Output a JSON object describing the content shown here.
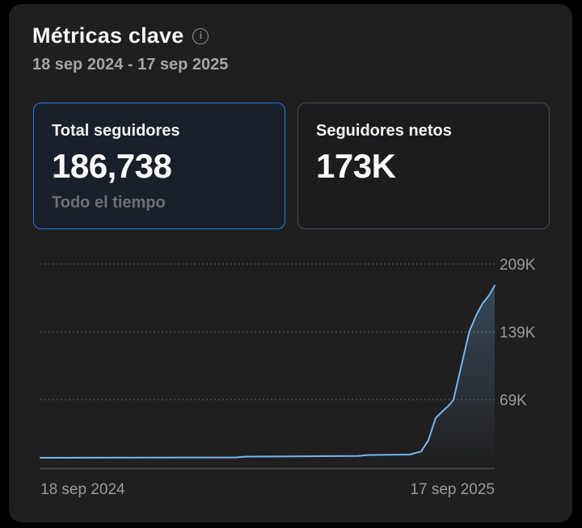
{
  "app": {
    "background": "#000000",
    "panel_background": "#1f1f20"
  },
  "header": {
    "title": "Métricas clave",
    "info_icon_glyph": "i",
    "date_range": "18 sep 2024 - 17 sep 2025"
  },
  "cards": [
    {
      "label": "Total seguidores",
      "value": "186,738",
      "sublabel": "Todo el tiempo",
      "selected": true
    },
    {
      "label": "Seguidores netos",
      "value": "173K",
      "selected": false
    }
  ],
  "colors": {
    "accent_blue": "#2b7bd4",
    "line_blue": "#7cb5e8",
    "text_primary": "#f5f5f5",
    "text_secondary": "#a5a5a5",
    "text_muted": "#6f6f73",
    "axis_text": "#9b9b9b",
    "card_border": "#4b4b4e"
  },
  "chart_data": {
    "type": "area",
    "series_name": "Total seguidores",
    "title": "",
    "x_axis_labels": [
      "18 sep 2024",
      "17 sep 2025"
    ],
    "y_ticks": [
      "69K",
      "139K",
      "209K"
    ],
    "y_tick_values": [
      69000,
      139000,
      209000
    ],
    "ylim": [
      0,
      209000
    ],
    "xlim_dates": [
      "18 sep 2024",
      "17 sep 2025"
    ],
    "grid": "horizontal-dashed",
    "legend": "none",
    "points": [
      {
        "t": 0.0,
        "approx_date": "18 sep 2024",
        "value": 9000
      },
      {
        "t": 0.43,
        "approx_date": "22 feb 2025",
        "value": 9300
      },
      {
        "t": 0.45,
        "approx_date": "1 mar 2025",
        "value": 10200
      },
      {
        "t": 0.7,
        "approx_date": "31 may 2025",
        "value": 10800
      },
      {
        "t": 0.72,
        "approx_date": "7 jun 2025",
        "value": 11800
      },
      {
        "t": 0.813,
        "approx_date": "11 jul 2025",
        "value": 12300
      },
      {
        "t": 0.838,
        "approx_date": "20 jul 2025",
        "value": 15500
      },
      {
        "t": 0.854,
        "approx_date": "26 jul 2025",
        "value": 27000
      },
      {
        "t": 0.87,
        "approx_date": "1 ago 2025",
        "value": 50000
      },
      {
        "t": 0.885,
        "approx_date": "6 ago 2025",
        "value": 57000
      },
      {
        "t": 0.897,
        "approx_date": "11 ago 2025",
        "value": 62000
      },
      {
        "t": 0.909,
        "approx_date": "15 ago 2025",
        "value": 68500
      },
      {
        "t": 0.932,
        "approx_date": "23 ago 2025",
        "value": 115000
      },
      {
        "t": 0.944,
        "approx_date": "28 ago 2025",
        "value": 139000
      },
      {
        "t": 0.959,
        "approx_date": "2 sep 2025",
        "value": 156000
      },
      {
        "t": 0.973,
        "approx_date": "7 sep 2025",
        "value": 168000
      },
      {
        "t": 0.988,
        "approx_date": "13 sep 2025",
        "value": 177000
      },
      {
        "t": 1.0,
        "approx_date": "17 sep 2025",
        "value": 186738
      }
    ]
  }
}
